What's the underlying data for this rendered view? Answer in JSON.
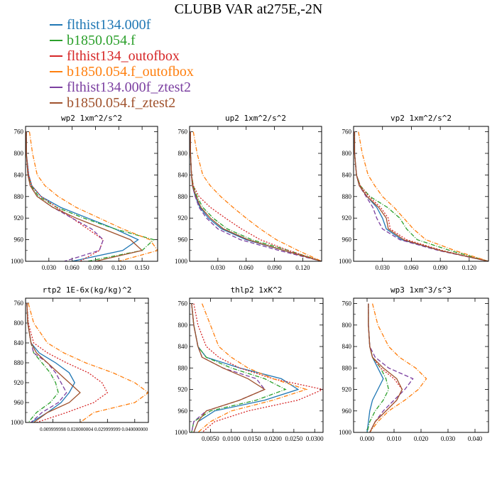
{
  "title": "CLUBB VAR at275E,-2N",
  "series": [
    {
      "name": "flthist134.000f",
      "color": "#1f77b4",
      "dash": ""
    },
    {
      "name": "b1850.054.f",
      "color": "#2ca02c",
      "dash": "6,2,1,2"
    },
    {
      "name": "flthist134_outofbox",
      "color": "#d62728",
      "dash": "2,2"
    },
    {
      "name": "b1850.054.f_outofbox",
      "color": "#ff7f0e",
      "dash": "6,2,1,2"
    },
    {
      "name": "flthist134.000f_ztest2",
      "color": "#7b3fa0",
      "dash": "6,3"
    },
    {
      "name": "b1850.054.f_ztest2",
      "color": "#a0522d",
      "dash": ""
    }
  ],
  "chart_data": [
    {
      "type": "line",
      "title": "wp2   1xm^2/s^2",
      "xlim": [
        0,
        0.17
      ],
      "ylim": [
        1000,
        750
      ],
      "xticks": [
        0.03,
        0.06,
        0.09,
        0.12,
        0.15
      ],
      "xticklabels": [
        "0.030",
        "0.060",
        "0.090",
        "0.120",
        "0.150"
      ],
      "yticks": [
        760,
        800,
        840,
        880,
        920,
        960,
        1000
      ],
      "y": [
        760,
        800,
        840,
        860,
        880,
        900,
        920,
        940,
        960,
        980,
        1000
      ],
      "series": [
        {
          "x": [
            0.001,
            0.001,
            0.004,
            0.008,
            0.02,
            0.045,
            0.08,
            0.115,
            0.145,
            0.125,
            0.06
          ]
        },
        {
          "x": [
            0.001,
            0.001,
            0.003,
            0.007,
            0.017,
            0.04,
            0.075,
            0.115,
            0.165,
            0.15,
            0.08
          ]
        },
        {
          "x": [
            0.001,
            0.001,
            0.004,
            0.008,
            0.02,
            0.04,
            0.06,
            0.08,
            0.1,
            0.095,
            0.07
          ]
        },
        {
          "x": [
            0.005,
            0.009,
            0.015,
            0.025,
            0.042,
            0.065,
            0.095,
            0.125,
            0.16,
            0.17,
            0.12
          ]
        },
        {
          "x": [
            0.001,
            0.001,
            0.003,
            0.006,
            0.015,
            0.035,
            0.06,
            0.085,
            0.1,
            0.095,
            0.05
          ]
        },
        {
          "x": [
            0.001,
            0.001,
            0.003,
            0.006,
            0.015,
            0.035,
            0.065,
            0.1,
            0.135,
            0.15,
            0.09
          ]
        }
      ]
    },
    {
      "type": "line",
      "title": "up2   1xm^2/s^2",
      "xlim": [
        0,
        0.14
      ],
      "ylim": [
        1000,
        750
      ],
      "xticks": [
        0.03,
        0.06,
        0.09,
        0.12
      ],
      "xticklabels": [
        "0.030",
        "0.060",
        "0.090",
        "0.120"
      ],
      "yticks": [
        760,
        800,
        840,
        880,
        920,
        960,
        1000
      ],
      "y": [
        760,
        800,
        840,
        860,
        880,
        900,
        920,
        940,
        960,
        980,
        1000
      ],
      "series": [
        {
          "x": [
            0.001,
            0.001,
            0.002,
            0.003,
            0.006,
            0.011,
            0.02,
            0.034,
            0.06,
            0.1,
            0.14
          ]
        },
        {
          "x": [
            0.001,
            0.001,
            0.002,
            0.004,
            0.008,
            0.014,
            0.025,
            0.04,
            0.066,
            0.105,
            0.14
          ]
        },
        {
          "x": [
            0.001,
            0.001,
            0.002,
            0.004,
            0.01,
            0.022,
            0.038,
            0.055,
            0.075,
            0.105,
            0.14
          ]
        },
        {
          "x": [
            0.004,
            0.008,
            0.014,
            0.022,
            0.033,
            0.046,
            0.06,
            0.075,
            0.092,
            0.115,
            0.14
          ]
        },
        {
          "x": [
            0.001,
            0.001,
            0.002,
            0.003,
            0.006,
            0.01,
            0.018,
            0.03,
            0.054,
            0.095,
            0.14
          ]
        },
        {
          "x": [
            0.001,
            0.001,
            0.002,
            0.003,
            0.007,
            0.012,
            0.022,
            0.036,
            0.062,
            0.1,
            0.14
          ]
        }
      ]
    },
    {
      "type": "line",
      "title": "vp2   1xm^2/s^2",
      "xlim": [
        0,
        0.14
      ],
      "ylim": [
        1000,
        750
      ],
      "xticks": [
        0.03,
        0.06,
        0.09,
        0.12
      ],
      "xticklabels": [
        "0.030",
        "0.060",
        "0.090",
        "0.120"
      ],
      "yticks": [
        760,
        800,
        840,
        880,
        920,
        960,
        1000
      ],
      "y": [
        760,
        800,
        840,
        860,
        880,
        900,
        920,
        940,
        960,
        980,
        1000
      ],
      "series": [
        {
          "x": [
            0.001,
            0.001,
            0.003,
            0.006,
            0.014,
            0.024,
            0.03,
            0.034,
            0.05,
            0.09,
            0.14
          ]
        },
        {
          "x": [
            0.001,
            0.001,
            0.003,
            0.007,
            0.017,
            0.035,
            0.048,
            0.055,
            0.066,
            0.1,
            0.14
          ]
        },
        {
          "x": [
            0.001,
            0.001,
            0.003,
            0.007,
            0.016,
            0.028,
            0.036,
            0.038,
            0.055,
            0.092,
            0.14
          ]
        },
        {
          "x": [
            0.005,
            0.009,
            0.015,
            0.022,
            0.03,
            0.042,
            0.052,
            0.062,
            0.075,
            0.105,
            0.14
          ]
        },
        {
          "x": [
            0.001,
            0.001,
            0.003,
            0.006,
            0.013,
            0.02,
            0.024,
            0.03,
            0.048,
            0.088,
            0.14
          ]
        },
        {
          "x": [
            0.001,
            0.001,
            0.003,
            0.006,
            0.014,
            0.026,
            0.034,
            0.036,
            0.052,
            0.09,
            0.14
          ]
        }
      ]
    },
    {
      "type": "line",
      "title": "rtp2   1E-6x(kg/kg)^2",
      "xlim": [
        0,
        0.045
      ],
      "ylim": [
        1000,
        750
      ],
      "xticks": [
        0.01,
        0.02,
        0.03,
        0.04
      ],
      "xticklabels": [
        "0.009999998",
        "0.020000004",
        "0.029999999",
        "0.040000000"
      ],
      "yticks": [
        760,
        800,
        840,
        880,
        920,
        960,
        1000
      ],
      "y": [
        760,
        800,
        840,
        860,
        880,
        900,
        920,
        940,
        960,
        980,
        1000
      ],
      "series": [
        {
          "x": [
            0.0005,
            0.0008,
            0.002,
            0.005,
            0.011,
            0.016,
            0.018,
            0.016,
            0.013,
            0.008,
            0.002
          ]
        },
        {
          "x": [
            0.0005,
            0.0008,
            0.002,
            0.003,
            0.006,
            0.009,
            0.011,
            0.012,
            0.009,
            0.004,
            0.001
          ]
        },
        {
          "x": [
            0.0005,
            0.001,
            0.003,
            0.008,
            0.015,
            0.023,
            0.028,
            0.03,
            0.025,
            0.015,
            0.004
          ]
        },
        {
          "x": [
            0.001,
            0.003,
            0.008,
            0.014,
            0.022,
            0.032,
            0.04,
            0.045,
            0.04,
            0.025,
            0.02
          ]
        },
        {
          "x": [
            0.0005,
            0.0008,
            0.002,
            0.003,
            0.008,
            0.011,
            0.013,
            0.015,
            0.012,
            0.006,
            0.002
          ]
        },
        {
          "x": [
            0.0005,
            0.0008,
            0.002,
            0.004,
            0.008,
            0.012,
            0.016,
            0.02,
            0.016,
            0.008,
            0.003
          ]
        }
      ]
    },
    {
      "type": "line",
      "title": "thlp2   1xK^2",
      "xlim": [
        0,
        0.032
      ],
      "ylim": [
        1000,
        750
      ],
      "xticks": [
        0.005,
        0.01,
        0.015,
        0.02,
        0.025,
        0.03
      ],
      "xticklabels": [
        "0.0050",
        "0.0100",
        "0.0150",
        "0.0200",
        "0.0250",
        "0.0300"
      ],
      "yticks": [
        760,
        800,
        840,
        880,
        920,
        960,
        1000
      ],
      "y": [
        760,
        800,
        840,
        860,
        880,
        900,
        920,
        940,
        960,
        980,
        1000
      ],
      "series": [
        {
          "x": [
            0.0005,
            0.001,
            0.002,
            0.004,
            0.012,
            0.022,
            0.026,
            0.018,
            0.006,
            0.002,
            0.001
          ]
        },
        {
          "x": [
            0.0005,
            0.001,
            0.002,
            0.004,
            0.01,
            0.018,
            0.023,
            0.016,
            0.005,
            0.001,
            0.0005
          ]
        },
        {
          "x": [
            0.001,
            0.002,
            0.004,
            0.007,
            0.012,
            0.02,
            0.032,
            0.026,
            0.014,
            0.006,
            0.003
          ]
        },
        {
          "x": [
            0.003,
            0.005,
            0.007,
            0.01,
            0.014,
            0.02,
            0.028,
            0.02,
            0.01,
            0.005,
            0.002
          ]
        },
        {
          "x": [
            0.0005,
            0.001,
            0.002,
            0.003,
            0.008,
            0.016,
            0.018,
            0.012,
            0.004,
            0.001,
            0.0005
          ]
        },
        {
          "x": [
            0.0005,
            0.001,
            0.002,
            0.003,
            0.008,
            0.014,
            0.018,
            0.012,
            0.004,
            0.002,
            0.001
          ]
        }
      ]
    },
    {
      "type": "line",
      "title": "wp3   1xm^3/s^3",
      "xlim": [
        -0.005,
        0.045
      ],
      "ylim": [
        1000,
        750
      ],
      "xticks": [
        0.0,
        0.01,
        0.02,
        0.03,
        0.04
      ],
      "xticklabels": [
        "0.000",
        "0.010",
        "0.020",
        "0.030",
        "0.040"
      ],
      "yticks": [
        760,
        800,
        840,
        880,
        920,
        960,
        1000
      ],
      "y": [
        760,
        800,
        840,
        860,
        880,
        900,
        920,
        940,
        960,
        980,
        1000
      ],
      "series": [
        {
          "x": [
            0.0005,
            0.0005,
            0.001,
            0.002,
            0.004,
            0.006,
            0.004,
            0.002,
            0.001,
            0.0005,
            0.0
          ]
        },
        {
          "x": [
            0.0005,
            0.0005,
            0.001,
            0.002,
            0.005,
            0.007,
            0.008,
            0.006,
            0.003,
            0.001,
            0.0
          ]
        },
        {
          "x": [
            0.0005,
            0.0005,
            0.001,
            0.002,
            0.005,
            0.01,
            0.013,
            0.011,
            0.007,
            0.003,
            0.001
          ]
        },
        {
          "x": [
            0.002,
            0.004,
            0.008,
            0.012,
            0.018,
            0.022,
            0.019,
            0.014,
            0.008,
            0.004,
            0.001
          ]
        },
        {
          "x": [
            0.0005,
            0.0005,
            0.001,
            0.003,
            0.008,
            0.017,
            0.014,
            0.01,
            0.006,
            0.003,
            0.001
          ]
        },
        {
          "x": [
            0.0005,
            0.0005,
            0.001,
            0.002,
            0.006,
            0.011,
            0.013,
            0.011,
            0.007,
            0.003,
            0.001
          ]
        }
      ]
    }
  ]
}
